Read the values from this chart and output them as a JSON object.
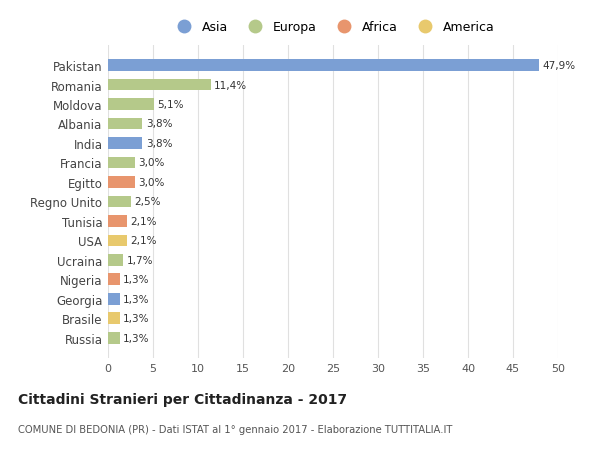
{
  "categories": [
    "Pakistan",
    "Romania",
    "Moldova",
    "Albania",
    "India",
    "Francia",
    "Egitto",
    "Regno Unito",
    "Tunisia",
    "USA",
    "Ucraina",
    "Nigeria",
    "Georgia",
    "Brasile",
    "Russia"
  ],
  "values": [
    47.9,
    11.4,
    5.1,
    3.8,
    3.8,
    3.0,
    3.0,
    2.5,
    2.1,
    2.1,
    1.7,
    1.3,
    1.3,
    1.3,
    1.3
  ],
  "labels": [
    "47,9%",
    "11,4%",
    "5,1%",
    "3,8%",
    "3,8%",
    "3,0%",
    "3,0%",
    "2,5%",
    "2,1%",
    "2,1%",
    "1,7%",
    "1,3%",
    "1,3%",
    "1,3%",
    "1,3%"
  ],
  "bar_colors": [
    "#7b9fd4",
    "#b5c98a",
    "#b5c98a",
    "#b5c98a",
    "#7b9fd4",
    "#b5c98a",
    "#e8956d",
    "#b5c98a",
    "#e8956d",
    "#e8c96d",
    "#b5c98a",
    "#e8956d",
    "#7b9fd4",
    "#e8c96d",
    "#b5c98a"
  ],
  "continent_colors": {
    "Asia": "#7b9fd4",
    "Europa": "#b5c98a",
    "Africa": "#e8956d",
    "America": "#e8c96d"
  },
  "legend_labels": [
    "Asia",
    "Europa",
    "Africa",
    "America"
  ],
  "title": "Cittadini Stranieri per Cittadinanza - 2017",
  "subtitle": "COMUNE DI BEDONIA (PR) - Dati ISTAT al 1° gennaio 2017 - Elaborazione TUTTITALIA.IT",
  "xlim": [
    0,
    50
  ],
  "xticks": [
    0,
    5,
    10,
    15,
    20,
    25,
    30,
    35,
    40,
    45,
    50
  ],
  "background_color": "#ffffff",
  "grid_color": "#e0e0e0",
  "bar_height": 0.6,
  "figsize": [
    6.0,
    4.6
  ],
  "dpi": 100
}
